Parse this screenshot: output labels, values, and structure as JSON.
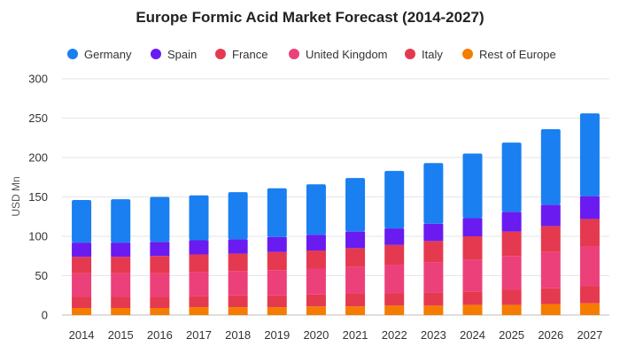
{
  "chart_data": {
    "type": "bar",
    "stacked": true,
    "title": "Europe Formic Acid Market Forecast (2014-2027)",
    "xlabel": "",
    "ylabel": "USD Mn",
    "ylim": [
      0,
      300
    ],
    "yticks": [
      0,
      50,
      100,
      150,
      200,
      250,
      300
    ],
    "grid": true,
    "legend_position": "top",
    "categories": [
      "2014",
      "2015",
      "2016",
      "2017",
      "2018",
      "2019",
      "2020",
      "2021",
      "2022",
      "2023",
      "2024",
      "2025",
      "2026",
      "2027"
    ],
    "series": [
      {
        "name": "Rest of Europe",
        "color": "#f57c00",
        "values": [
          9,
          9,
          9,
          10,
          10,
          10,
          11,
          11,
          12,
          12,
          13,
          13,
          14,
          15
        ]
      },
      {
        "name": "Italy",
        "color": "#e53950",
        "values": [
          14,
          14,
          14,
          14,
          15,
          15,
          15,
          16,
          16,
          17,
          17,
          19,
          20,
          22
        ]
      },
      {
        "name": "United Kingdom",
        "color": "#ec407a",
        "values": [
          30,
          30,
          30,
          31,
          31,
          32,
          33,
          34,
          36,
          38,
          40,
          43,
          46,
          50
        ]
      },
      {
        "name": "France",
        "color": "#e53950",
        "values": [
          21,
          21,
          22,
          22,
          22,
          23,
          23,
          24,
          25,
          27,
          30,
          31,
          33,
          35
        ]
      },
      {
        "name": "Spain",
        "color": "#6a1bf0",
        "values": [
          18,
          18,
          18,
          18,
          18,
          19,
          20,
          21,
          21,
          22,
          23,
          25,
          27,
          29
        ]
      },
      {
        "name": "Germany",
        "color": "#1a7ff0",
        "values": [
          54,
          55,
          57,
          57,
          60,
          62,
          64,
          68,
          73,
          77,
          82,
          88,
          96,
          105
        ]
      }
    ],
    "legend_order": [
      "Germany",
      "Spain",
      "France",
      "United Kingdom",
      "Italy",
      "Rest of Europe"
    ]
  }
}
